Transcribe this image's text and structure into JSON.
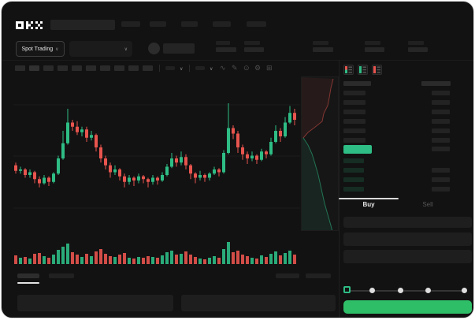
{
  "colors": {
    "up": "#2ebd85",
    "down": "#e8544e",
    "accent": "#2fbe68",
    "bg": "#121212",
    "tab_active": "#e8e8e8",
    "tab_inactive": "#565656"
  },
  "icons": {
    "chevron_down": "∨",
    "wave_icon": "∿",
    "pencil_icon": "✎",
    "camera_icon": "⊙",
    "gear_icon": "⚙",
    "expand_icon": "⊞"
  },
  "header": {
    "logo": "OKX"
  },
  "subheader": {
    "market_selector_label": "Spot Trading"
  },
  "orderbook": {
    "buy_tab_label": "Buy",
    "sell_tab_label": "Sell"
  },
  "chart_data": [
    {
      "type": "candlestick",
      "title": "price chart (no visible axis labels)",
      "y_units": "normalized price 0-100 (no tick labels shown)",
      "grid": "faint horizontal gridlines",
      "up_color": "#2ebd85",
      "down_color": "#e8544e",
      "candles": [
        [
          47,
          43,
          41,
          49
        ],
        [
          43,
          44,
          41,
          46
        ],
        [
          44,
          40,
          38,
          45
        ],
        [
          40,
          42,
          38,
          44
        ],
        [
          42,
          37,
          34,
          43
        ],
        [
          37,
          34,
          31,
          39
        ],
        [
          34,
          38,
          33,
          40
        ],
        [
          38,
          35,
          32,
          39
        ],
        [
          35,
          41,
          34,
          42
        ],
        [
          41,
          52,
          40,
          54
        ],
        [
          52,
          63,
          51,
          72
        ],
        [
          63,
          78,
          62,
          88
        ],
        [
          78,
          75,
          72,
          80
        ],
        [
          75,
          71,
          69,
          79
        ],
        [
          71,
          73,
          68,
          75
        ],
        [
          73,
          67,
          64,
          75
        ],
        [
          67,
          69,
          65,
          72
        ],
        [
          69,
          60,
          57,
          70
        ],
        [
          60,
          52,
          49,
          62
        ],
        [
          52,
          47,
          44,
          54
        ],
        [
          47,
          42,
          38,
          49
        ],
        [
          42,
          44,
          40,
          47
        ],
        [
          44,
          39,
          36,
          45
        ],
        [
          39,
          35,
          31,
          41
        ],
        [
          35,
          38,
          33,
          40
        ],
        [
          38,
          36,
          32,
          39
        ],
        [
          36,
          39,
          34,
          41
        ],
        [
          39,
          37,
          34,
          40
        ],
        [
          37,
          35,
          31,
          38
        ],
        [
          35,
          38,
          33,
          40
        ],
        [
          38,
          36,
          33,
          39
        ],
        [
          36,
          40,
          35,
          42
        ],
        [
          40,
          46,
          39,
          48
        ],
        [
          46,
          52,
          45,
          56
        ],
        [
          52,
          49,
          46,
          54
        ],
        [
          49,
          53,
          47,
          57
        ],
        [
          53,
          47,
          44,
          55
        ],
        [
          47,
          41,
          37,
          48
        ],
        [
          41,
          38,
          34,
          42
        ],
        [
          38,
          40,
          36,
          43
        ],
        [
          40,
          38,
          35,
          41
        ],
        [
          38,
          41,
          36,
          42
        ],
        [
          41,
          44,
          40,
          46
        ],
        [
          44,
          42,
          39,
          45
        ],
        [
          42,
          56,
          41,
          58
        ],
        [
          56,
          74,
          55,
          92
        ],
        [
          74,
          70,
          66,
          76
        ],
        [
          70,
          60,
          56,
          72
        ],
        [
          60,
          55,
          51,
          62
        ],
        [
          55,
          52,
          48,
          57
        ],
        [
          52,
          54,
          50,
          57
        ],
        [
          54,
          51,
          48,
          55
        ],
        [
          51,
          57,
          50,
          59
        ],
        [
          57,
          55,
          52,
          58
        ],
        [
          55,
          64,
          54,
          67
        ],
        [
          64,
          72,
          63,
          76
        ],
        [
          72,
          68,
          64,
          74
        ],
        [
          68,
          78,
          67,
          82
        ],
        [
          78,
          85,
          77,
          90
        ],
        [
          85,
          80,
          76,
          88
        ]
      ],
      "volumes": [
        11,
        8,
        9,
        7,
        13,
        14,
        10,
        8,
        12,
        18,
        22,
        26,
        15,
        12,
        9,
        13,
        10,
        16,
        19,
        13,
        10,
        9,
        12,
        14,
        8,
        7,
        9,
        8,
        10,
        9,
        8,
        11,
        15,
        17,
        12,
        13,
        16,
        12,
        9,
        7,
        6,
        8,
        10,
        8,
        19,
        28,
        15,
        17,
        12,
        10,
        8,
        7,
        11,
        9,
        13,
        16,
        11,
        14,
        17,
        12
      ]
    },
    {
      "type": "area",
      "title": "vertical order-book depth",
      "units": "relative coords in 48x196 box",
      "asks_color": "#e8544e",
      "bids_color": "#2ebd85",
      "asks_points": [
        [
          40,
          2
        ],
        [
          37,
          14
        ],
        [
          35,
          26
        ],
        [
          33,
          36
        ],
        [
          28,
          46
        ],
        [
          26,
          56
        ],
        [
          16,
          64
        ],
        [
          8,
          70
        ],
        [
          2,
          77
        ]
      ],
      "bids_points": [
        [
          2,
          77
        ],
        [
          8,
          86
        ],
        [
          13,
          97
        ],
        [
          17,
          110
        ],
        [
          21,
          124
        ],
        [
          25,
          142
        ],
        [
          29,
          160
        ],
        [
          33,
          174
        ],
        [
          37,
          188
        ],
        [
          39,
          196
        ]
      ]
    }
  ]
}
